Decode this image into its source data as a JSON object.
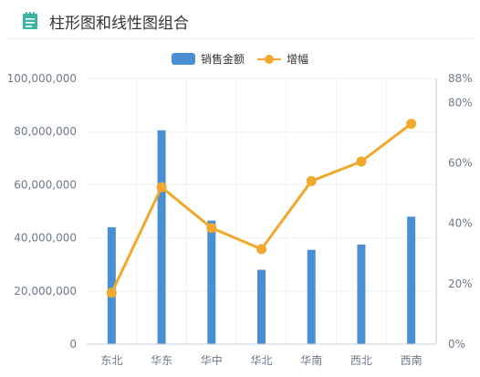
{
  "header": {
    "title": "柱形图和线性图组合",
    "icon": "document-list-icon",
    "icon_color": "#3cb4a4"
  },
  "legend": {
    "bar_label": "销售金额",
    "line_label": "增幅"
  },
  "colors": {
    "bar": "#4a8fd4",
    "line": "#f0a82d",
    "axis_text": "#6e7a8a",
    "grid": "#eef1f4"
  },
  "chart_data": {
    "type": "bar",
    "categories": [
      "东北",
      "华东",
      "华中",
      "华北",
      "华南",
      "西北",
      "西南"
    ],
    "series": [
      {
        "name": "销售金额",
        "type": "bar",
        "axis": "left",
        "values": [
          44000000,
          80500000,
          46500000,
          28000000,
          35500000,
          37500000,
          48000000
        ]
      },
      {
        "name": "增幅",
        "type": "line",
        "axis": "right",
        "values": [
          17,
          52,
          38.5,
          31.5,
          54,
          60.5,
          73
        ]
      }
    ],
    "y_left": {
      "ticks": [
        "0",
        "20,000,000",
        "40,000,000",
        "60,000,000",
        "80,000,000",
        "100,000,000"
      ],
      "ylim": [
        0,
        100000000
      ]
    },
    "y_right": {
      "ticks": [
        "0%",
        "20%",
        "40%",
        "60%",
        "80%",
        "88%"
      ],
      "ylim": [
        0,
        88
      ]
    },
    "legend_position": "top-center",
    "grid": true
  }
}
